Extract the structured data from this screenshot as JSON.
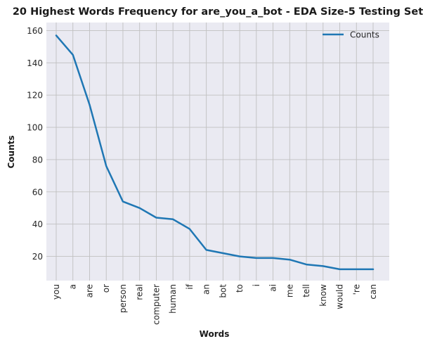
{
  "chart_data": {
    "type": "line",
    "title": "20 Highest Words Frequency for are_you_a_bot - EDA Size-5 Testing Set",
    "xlabel": "Words",
    "ylabel": "Counts",
    "categories": [
      "you",
      "a",
      "are",
      "or",
      "person",
      "real",
      "computer",
      "human",
      "if",
      "an",
      "bot",
      "to",
      "i",
      "ai",
      "me",
      "tell",
      "know",
      "would",
      "'re",
      "can"
    ],
    "series": [
      {
        "name": "Counts",
        "color": "#1f77b4",
        "values": [
          157,
          145,
          114,
          76,
          54,
          50,
          44,
          43,
          37,
          24,
          22,
          20,
          19,
          19,
          18,
          15,
          14,
          12,
          12,
          12
        ]
      }
    ],
    "ylim": [
      5,
      165
    ],
    "yticks": [
      20,
      40,
      60,
      80,
      100,
      120,
      140,
      160
    ],
    "grid": true,
    "legend_position": "top-right",
    "colors": {
      "plot_background": "#eaeaf2",
      "grid": "#c0c0c0",
      "line": "#1f77b4"
    }
  }
}
